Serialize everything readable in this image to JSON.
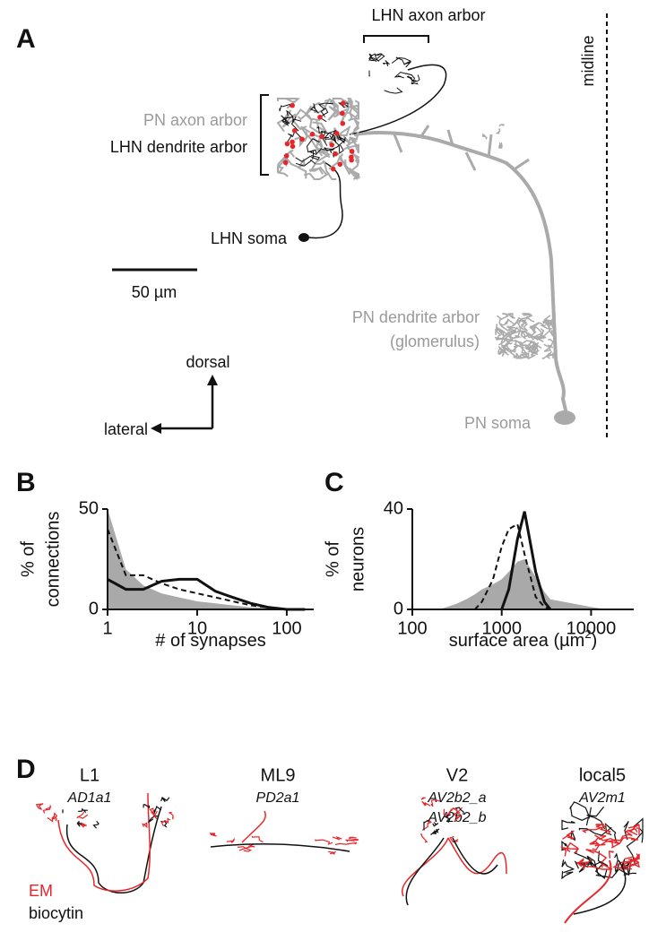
{
  "panel_a": {
    "letter": "A",
    "lhn_axon": "LHN axon arbor",
    "midline": "midline",
    "pn_axon": "PN axon arbor",
    "lhn_dendrite": "LHN dendrite arbor",
    "lhn_soma": "LHN soma",
    "scale": "50 µm",
    "pn_dendrite": "PN dendrite arbor",
    "glomerulus": "(glomerulus)",
    "dorsal": "dorsal",
    "lateral": "lateral",
    "pn_soma": "PN soma"
  },
  "chart_data": [
    {
      "type": "line",
      "letter": "B",
      "xscale": "log",
      "ylabel": [
        "% of",
        "connections"
      ],
      "xlabel": [
        "# of synapses"
      ],
      "xlim": [
        1,
        200
      ],
      "xticks": [
        1,
        10,
        100
      ],
      "ylim": [
        0,
        50
      ],
      "yticks": [
        0,
        50
      ],
      "x": [
        1,
        1.6,
        2.5,
        4,
        6.3,
        10,
        16,
        25,
        40,
        63,
        100,
        160
      ],
      "series": [
        {
          "style": "area",
          "color": "#a9a9a9",
          "values": [
            50,
            20,
            12,
            8,
            6,
            4,
            3,
            2,
            1,
            1,
            0,
            0
          ]
        },
        {
          "style": "dashed",
          "color": "#111111",
          "values": [
            40,
            17,
            17,
            13,
            10,
            8,
            6,
            4,
            2,
            1,
            0,
            0
          ]
        },
        {
          "style": "solid",
          "color": "#111111",
          "values": [
            15,
            10,
            10,
            14,
            15,
            15,
            9,
            6,
            3,
            1,
            0,
            0
          ]
        }
      ]
    },
    {
      "type": "line",
      "letter": "C",
      "xscale": "log",
      "ylabel": [
        "% of",
        "neurons"
      ],
      "xlabel": [
        "surface area (µm",
        "2",
        ")"
      ],
      "xlim": [
        100,
        30000
      ],
      "xticks": [
        100,
        1000,
        10000
      ],
      "ylim": [
        0,
        40
      ],
      "yticks": [
        0,
        40
      ],
      "x": [
        200,
        300,
        400,
        500,
        600,
        800,
        1000,
        1200,
        1500,
        1800,
        2400,
        3000,
        3500,
        5000,
        7000,
        10000,
        15000
      ],
      "series": [
        {
          "style": "area",
          "color": "#a9a9a9",
          "values": [
            0,
            2,
            4,
            6,
            8,
            10,
            12,
            15,
            19,
            20,
            13,
            7,
            4,
            3,
            2,
            1,
            0
          ]
        },
        {
          "style": "dashed",
          "color": "#111111",
          "values": [
            null,
            null,
            null,
            0,
            3,
            12,
            25,
            32,
            34,
            22,
            5,
            1,
            0,
            null,
            null,
            null,
            null
          ]
        },
        {
          "style": "solid",
          "color": "#111111",
          "values": [
            null,
            null,
            null,
            null,
            null,
            null,
            0,
            8,
            28,
            39,
            15,
            3,
            0,
            null,
            null,
            null,
            null
          ]
        }
      ]
    }
  ],
  "panel_d": {
    "letter": "D",
    "neurons": [
      {
        "name": "L1",
        "lineage": [
          "AD1a1"
        ]
      },
      {
        "name": "ML9",
        "lineage": [
          "PD2a1"
        ]
      },
      {
        "name": "V2",
        "lineage": [
          "AV2b2_a",
          "AV2b2_b"
        ]
      },
      {
        "name": "local5",
        "lineage": [
          "AV2m1"
        ]
      }
    ],
    "em": "EM",
    "biocytin": "biocytin"
  }
}
